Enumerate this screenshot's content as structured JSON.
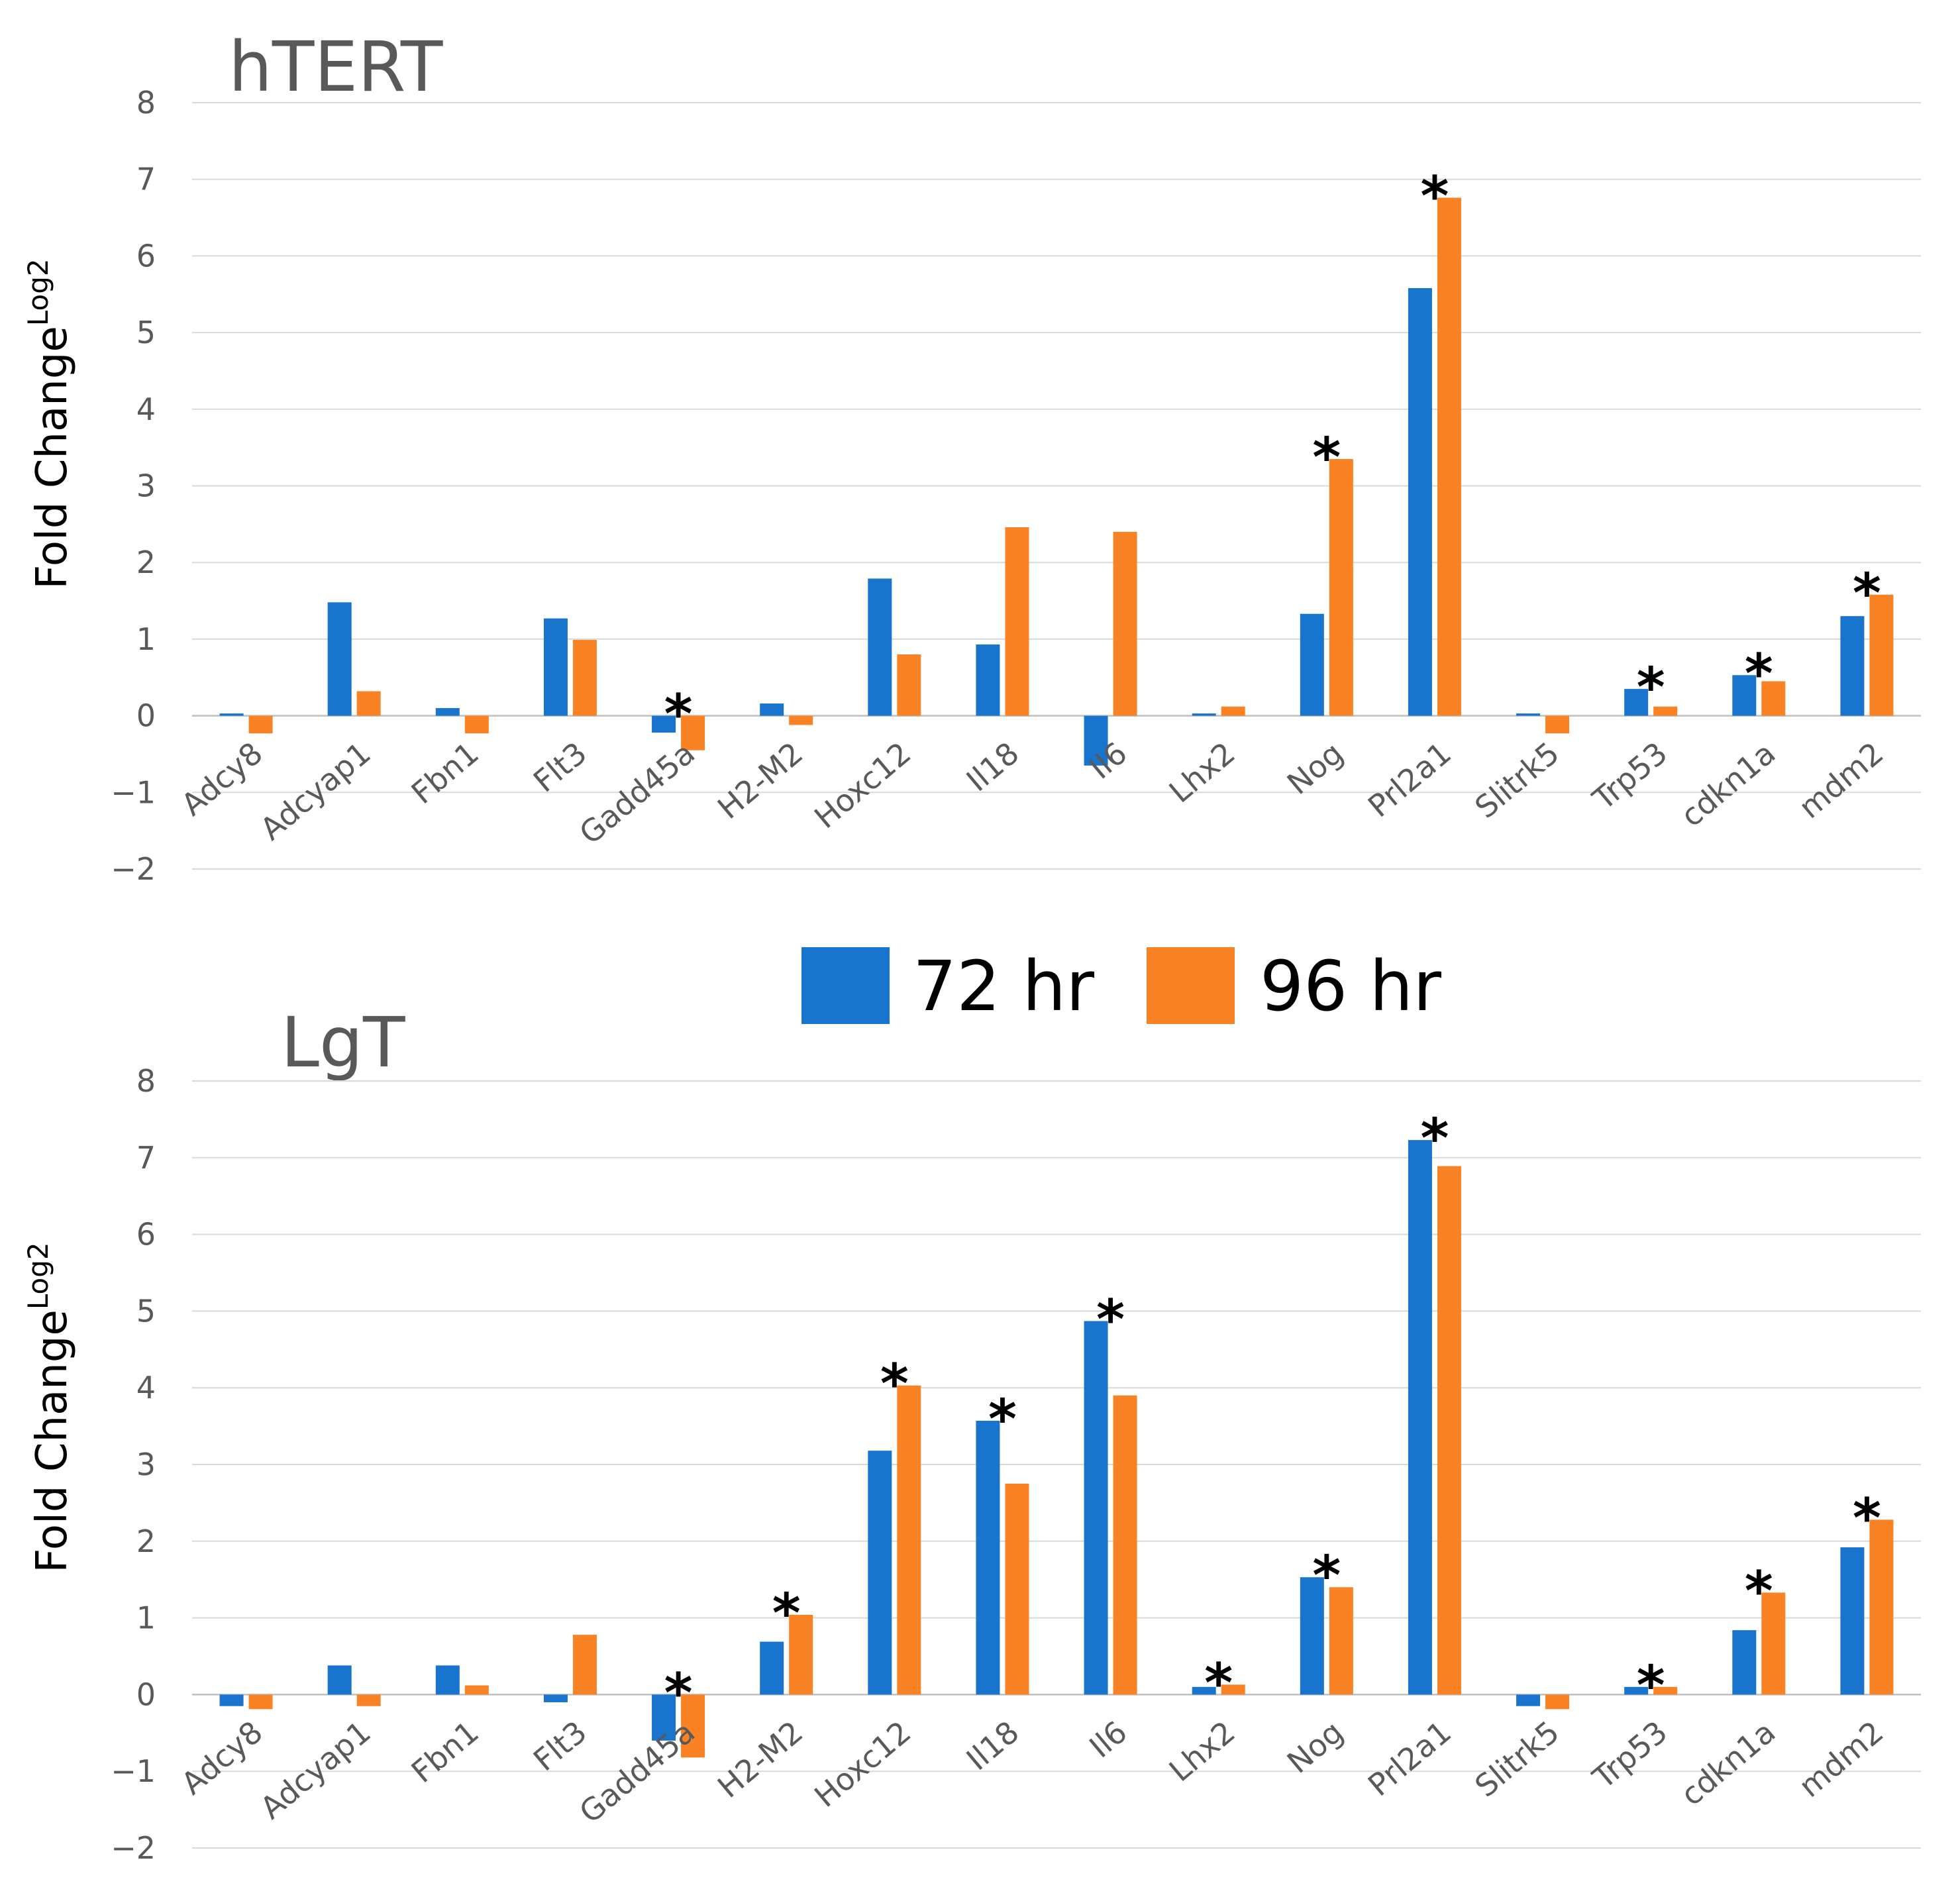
{
  "colors": {
    "series_72": "#1874CD",
    "series_96": "#F98224"
  },
  "legend": {
    "items": [
      {
        "label": "72 hr",
        "color": "#1874CD"
      },
      {
        "label": "96 hr",
        "color": "#F98224"
      }
    ]
  },
  "chart_data": [
    {
      "type": "bar",
      "title": "hTERT",
      "ylabel": "Fold Change",
      "ylabel_superscript": "Log2",
      "ylim": [
        -2,
        8
      ],
      "yticks": [
        "8",
        "7",
        "6",
        "5",
        "4",
        "3",
        "2",
        "1",
        "0",
        "−1",
        "−2"
      ],
      "grid": true,
      "categories": [
        "Adcy8",
        "Adcyap1",
        "Fbn1",
        "Flt3",
        "Gadd45a",
        "H2-M2",
        "Hoxc12",
        "Il18",
        "Il6",
        "Lhx2",
        "Nog",
        "Prl2a1",
        "Slitrk5",
        "Trp53",
        "cdkn1a",
        "mdm2"
      ],
      "series": [
        {
          "name": "72 hr",
          "values": [
            0.03,
            1.48,
            0.1,
            1.27,
            -0.22,
            0.16,
            1.79,
            0.93,
            -0.65,
            0.03,
            1.33,
            5.58,
            0.03,
            0.35,
            0.53,
            1.3
          ]
        },
        {
          "name": "96 hr",
          "values": [
            -0.23,
            0.32,
            -0.23,
            0.99,
            -0.45,
            -0.12,
            0.8,
            2.46,
            2.4,
            0.12,
            3.35,
            6.76,
            -0.23,
            0.12,
            0.45,
            1.58
          ]
        }
      ],
      "significance": [
        "",
        "",
        "",
        "",
        "*",
        "",
        "",
        "",
        "",
        "",
        "*",
        "*",
        "",
        "*",
        "*",
        "*"
      ]
    },
    {
      "type": "bar",
      "title": "LgT",
      "ylabel": "Fold Change",
      "ylabel_superscript": "Log2",
      "ylim": [
        -2,
        8
      ],
      "yticks": [
        "8",
        "7",
        "6",
        "5",
        "4",
        "3",
        "2",
        "1",
        "0",
        "−1",
        "−2"
      ],
      "grid": true,
      "categories": [
        "Adcy8",
        "Adcyap1",
        "Fbn1",
        "Flt3",
        "Gadd45a",
        "H2-M2",
        "Hoxc12",
        "Il18",
        "Il6",
        "Lhx2",
        "Nog",
        "Prl2a1",
        "Slitrk5",
        "Trp53",
        "cdkn1a",
        "mdm2"
      ],
      "series": [
        {
          "name": "72 hr",
          "values": [
            -0.15,
            0.38,
            0.38,
            -0.1,
            -0.6,
            0.69,
            3.18,
            3.57,
            4.87,
            0.1,
            1.53,
            7.23,
            -0.15,
            0.1,
            0.84,
            1.92
          ]
        },
        {
          "name": "96 hr",
          "values": [
            -0.19,
            -0.15,
            0.12,
            0.78,
            -0.82,
            1.04,
            4.03,
            2.75,
            3.9,
            0.13,
            1.4,
            6.89,
            -0.19,
            0.1,
            1.33,
            2.28
          ]
        }
      ],
      "significance": [
        "",
        "",
        "",
        "",
        "*",
        "*",
        "*",
        "*",
        "*",
        "*",
        "*",
        "*",
        "",
        "*",
        "*",
        "*"
      ]
    }
  ]
}
